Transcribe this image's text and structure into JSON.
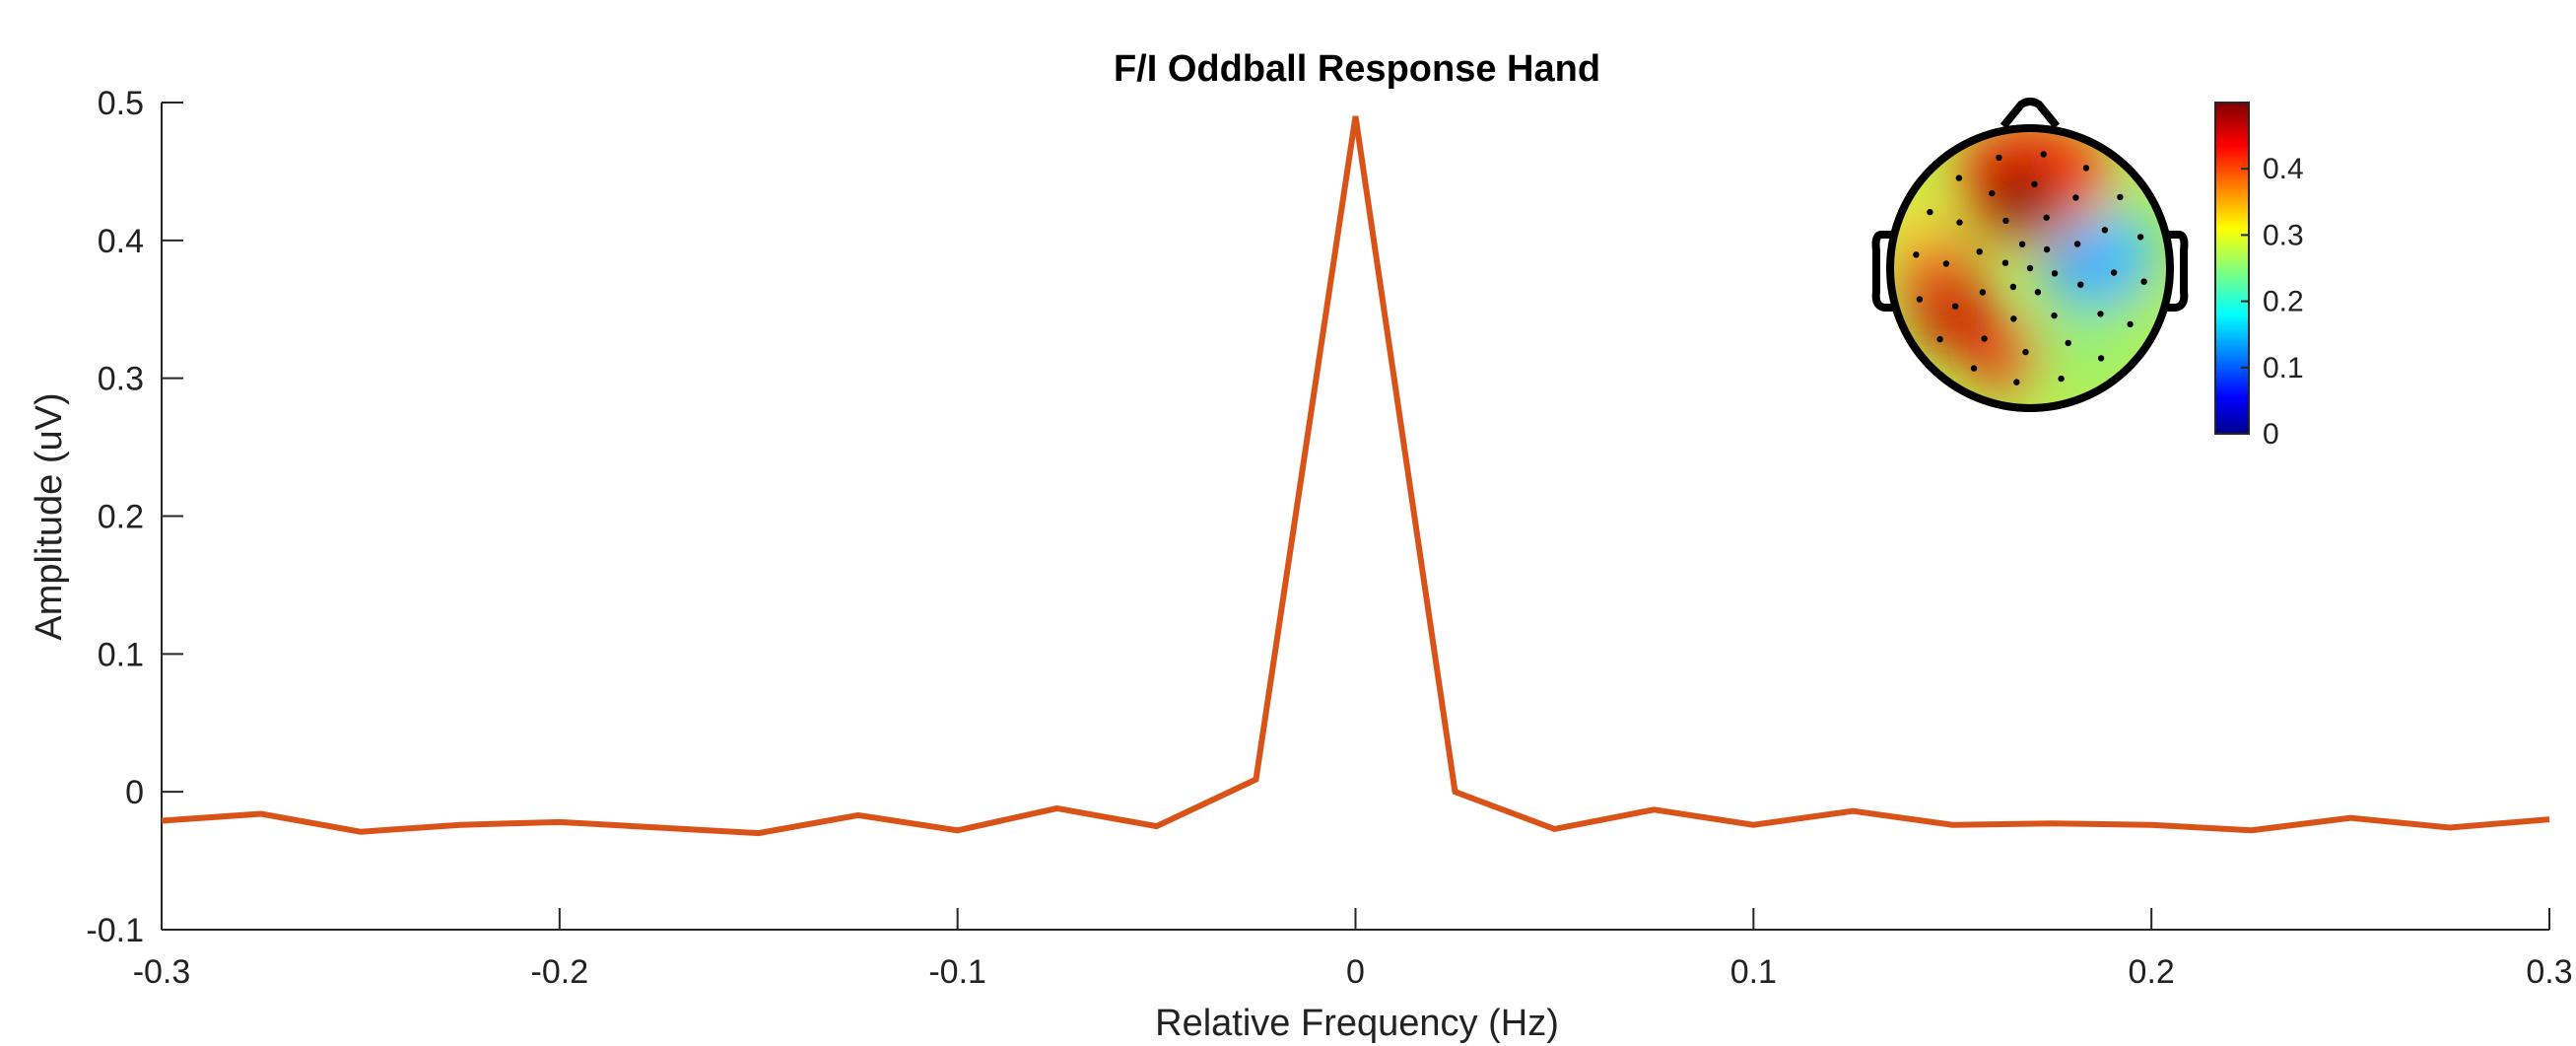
{
  "chart_data": {
    "type": "line",
    "title": "F/I Oddball Response Hand",
    "xlabel": "Relative Frequency (Hz)",
    "ylabel": "Amplitude (uV)",
    "xlim": [
      -0.3,
      0.3
    ],
    "ylim": [
      -0.1,
      0.5
    ],
    "xticks": [
      -0.3,
      -0.2,
      -0.1,
      0,
      0.1,
      0.2,
      0.3
    ],
    "xtick_labels": [
      "-0.3",
      "-0.2",
      "-0.1",
      "0",
      "0.1",
      "0.2",
      "0.3"
    ],
    "yticks": [
      -0.1,
      0,
      0.1,
      0.2,
      0.3,
      0.4,
      0.5
    ],
    "ytick_labels": [
      "-0.1",
      "0",
      "0.1",
      "0.2",
      "0.3",
      "0.4",
      "0.5"
    ],
    "grid": false,
    "line_color": "#D95319",
    "series": [
      {
        "x": [
          -0.3,
          -0.275,
          -0.25,
          -0.225,
          -0.2,
          -0.175,
          -0.15,
          -0.125,
          -0.1,
          -0.075,
          -0.05,
          -0.025,
          0,
          0.025,
          0.05,
          0.075,
          0.1,
          0.125,
          0.15,
          0.175,
          0.2,
          0.225,
          0.25,
          0.275,
          0.3
        ],
        "values": [
          -0.021,
          -0.016,
          -0.029,
          -0.024,
          -0.022,
          -0.026,
          -0.03,
          -0.017,
          -0.028,
          -0.012,
          -0.025,
          0.009,
          0.49,
          0.0,
          -0.027,
          -0.013,
          -0.024,
          -0.014,
          -0.024,
          -0.023,
          -0.024,
          -0.028,
          -0.019,
          -0.026,
          -0.02
        ]
      }
    ],
    "inset": {
      "type": "heatmap",
      "description_kind": "scalp topography",
      "colormap": "jet",
      "colorbar_range": [
        0,
        0.5
      ],
      "colorbar_ticks": [
        0,
        0.1,
        0.2,
        0.3,
        0.4
      ],
      "colorbar_tick_labels": [
        "0",
        "0.1",
        "0.2",
        "0.3",
        "0.4"
      ],
      "colors": [
        "#00008F",
        "#0000FF",
        "#00FFFF",
        "#FFFF00",
        "#FF0000",
        "#800000"
      ]
    }
  }
}
